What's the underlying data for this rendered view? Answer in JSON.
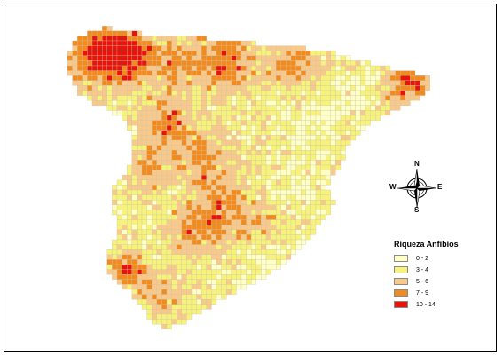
{
  "map": {
    "region": "Iberian Peninsula (Spain)",
    "background": "#ffffff",
    "cell_stroke": "#c9c2a8"
  },
  "legend": {
    "title": "Riqueza Anfibios",
    "items": [
      {
        "label": "0 - 2",
        "color": "#ffffc8"
      },
      {
        "label": "3 - 4",
        "color": "#f7f27a"
      },
      {
        "label": "5 - 6",
        "color": "#f8c98a"
      },
      {
        "label": "7 - 9",
        "color": "#f28a1e"
      },
      {
        "label": "10 - 14",
        "color": "#e8140c"
      }
    ]
  },
  "compass": {
    "north": "N",
    "south": "S",
    "east": "E",
    "west": "W"
  }
}
